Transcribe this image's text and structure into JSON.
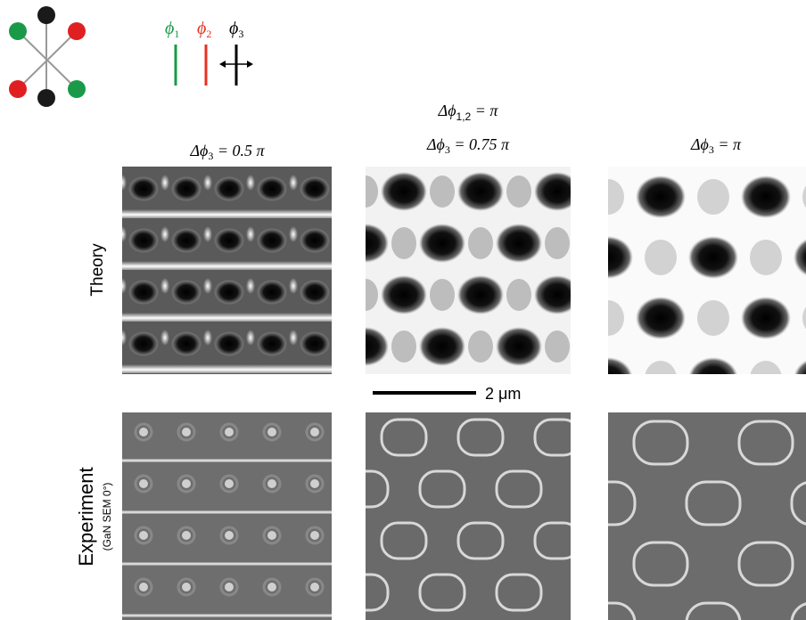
{
  "polarizations": [
    {
      "symbol": "ϕ",
      "subscript": "1"
    },
    {
      "symbol": "ϕ",
      "subscript": "2"
    },
    {
      "symbol": "ϕ",
      "subscript": "3"
    }
  ],
  "header": {
    "prefix": "Δϕ",
    "subscript": "1,2",
    "suffix": " = π"
  },
  "columns": [
    {
      "prefix": "Δϕ",
      "subscript": "3",
      "suffix": " = 0.5 π"
    },
    {
      "prefix": "Δϕ",
      "subscript": "3",
      "suffix": " = 0.75 π"
    },
    {
      "prefix": "Δϕ",
      "subscript": "3",
      "suffix": " = π"
    }
  ],
  "rows": {
    "theory": "Theory",
    "experiment": "Experiment",
    "experiment_note": "(GaN SEM 0°)"
  },
  "scale_bar": "2 μm"
}
